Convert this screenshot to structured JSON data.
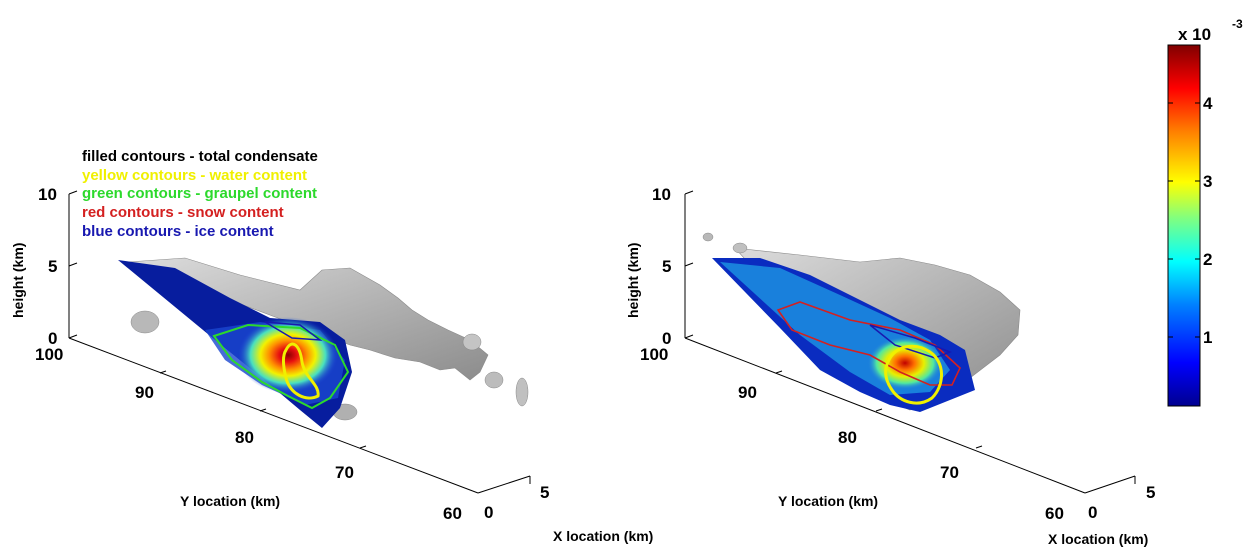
{
  "chart_data": [
    {
      "type": "other",
      "description_panel": "left",
      "axes": {
        "zlabel": "height (km)",
        "ylabel": "Y location (km)",
        "xlabel": "X location (km)",
        "z_ticks": [
          "0",
          "5",
          "10"
        ],
        "y_ticks": [
          "100",
          "90",
          "80",
          "70",
          "60"
        ],
        "x_ticks": [
          "0",
          "5"
        ],
        "z_range": [
          0,
          10
        ],
        "y_range": [
          60,
          100
        ],
        "x_range": [
          0,
          5
        ]
      },
      "legend": [
        {
          "label": "filled contours - total condensate",
          "color": "#000000"
        },
        {
          "label": "yellow contours - water content",
          "color": "#f0f000"
        },
        {
          "label": "green contours - graupel content",
          "color": "#2cd92c"
        },
        {
          "label": "red contours - snow content",
          "color": "#d42020"
        },
        {
          "label": "blue contours - ice content",
          "color": "#1818b0"
        }
      ],
      "legend_placement": "top-left"
    },
    {
      "type": "other",
      "description_panel": "right",
      "axes": {
        "zlabel": "height (km)",
        "ylabel": "Y location (km)",
        "xlabel": "X location (km)",
        "z_ticks": [
          "0",
          "5",
          "10"
        ],
        "y_ticks": [
          "100",
          "90",
          "80",
          "70",
          "60"
        ],
        "x_ticks": [
          "0",
          "5"
        ],
        "z_range": [
          0,
          10
        ],
        "y_range": [
          60,
          100
        ],
        "x_range": [
          0,
          5
        ]
      }
    }
  ],
  "colorbar": {
    "multiplier_base": "x 10",
    "multiplier_exp": "-3",
    "ticks": [
      "1",
      "2",
      "3",
      "4"
    ],
    "colors": [
      "#00008f",
      "#0000ff",
      "#0080ff",
      "#00ffff",
      "#80ff80",
      "#ffff00",
      "#ff8000",
      "#ff0000",
      "#800000"
    ]
  }
}
